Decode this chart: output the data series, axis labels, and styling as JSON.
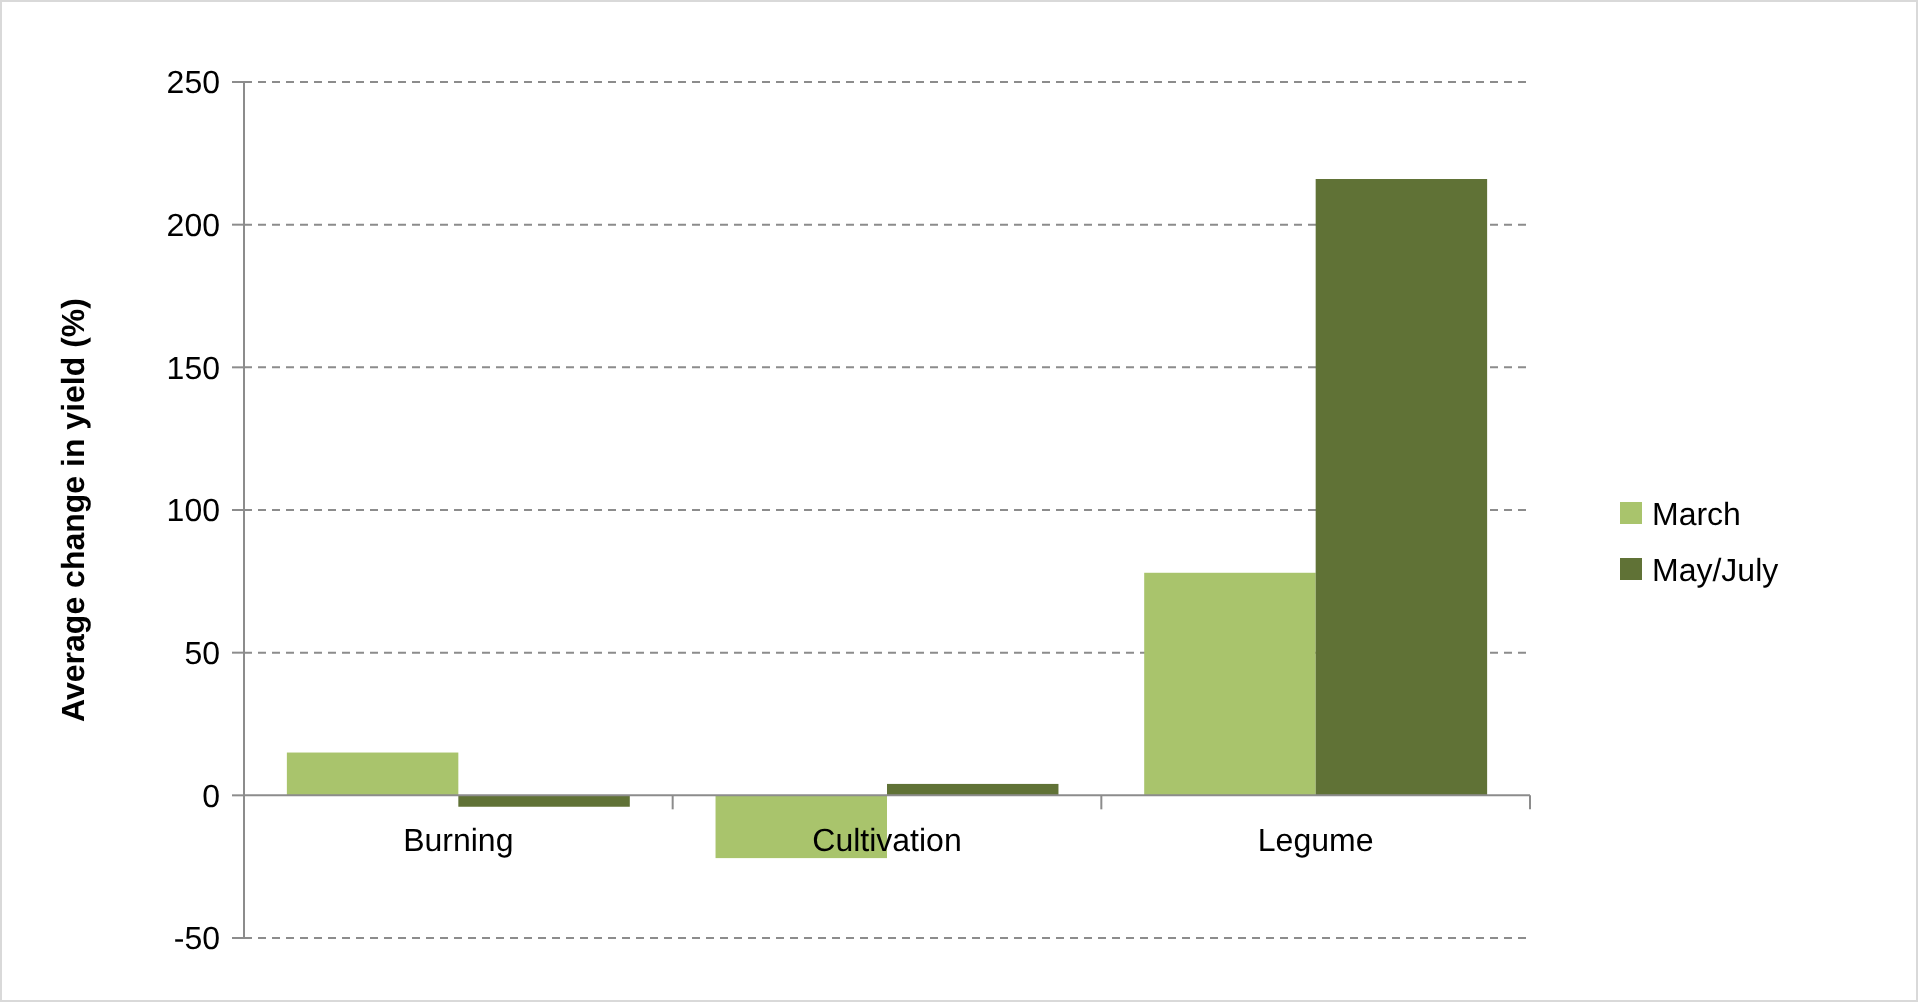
{
  "chart_data": {
    "type": "bar",
    "ylabel": "Average change in yield (%)",
    "categories": [
      "Burning",
      "Cultivation",
      "Legume"
    ],
    "series": [
      {
        "name": "March",
        "color": "#a9c46c",
        "values": [
          15,
          -22,
          78
        ]
      },
      {
        "name": "May/July",
        "color": "#607236",
        "values": [
          -4,
          4,
          216
        ]
      }
    ],
    "ylim": [
      -50,
      250
    ],
    "yticks": [
      -50,
      0,
      50,
      100,
      150,
      200,
      250
    ],
    "grid": "y",
    "legend": "right"
  }
}
